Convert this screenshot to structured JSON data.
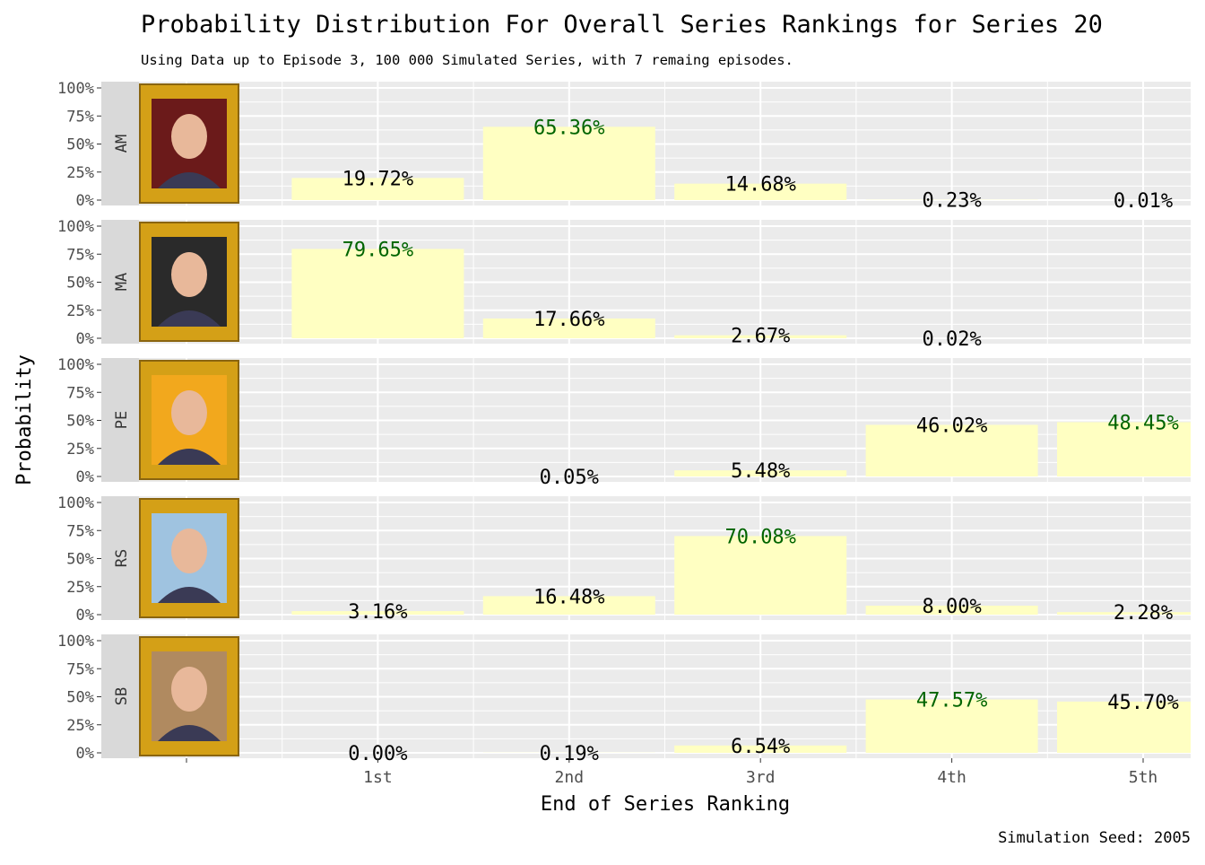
{
  "chart_data": {
    "type": "bar",
    "title": "Probability Distribution For Overall Series Rankings for Series 20",
    "subtitle": "Using Data up to Episode 3, 100 000 Simulated Series, with 7 remaing episodes.",
    "xlabel": "End of Series Ranking",
    "ylabel": "Probability",
    "caption": "Simulation Seed: 2005",
    "categories": [
      "1st",
      "2nd",
      "3rd",
      "4th",
      "5th"
    ],
    "yticks": [
      "0%",
      "25%",
      "50%",
      "75%",
      "100%"
    ],
    "ylim": [
      0,
      100
    ],
    "facets": [
      {
        "name": "AM",
        "values": [
          19.72,
          65.36,
          14.68,
          0.23,
          0.01
        ],
        "labels": [
          "19.72%",
          "65.36%",
          "14.68%",
          "0.23%",
          "0.01%"
        ],
        "max_index": 1
      },
      {
        "name": "MA",
        "values": [
          79.65,
          17.66,
          2.67,
          0.02,
          null
        ],
        "labels": [
          "79.65%",
          "17.66%",
          "2.67%",
          "0.02%",
          null
        ],
        "max_index": 0
      },
      {
        "name": "PE",
        "values": [
          null,
          0.05,
          5.48,
          46.02,
          48.45
        ],
        "labels": [
          null,
          "0.05%",
          "5.48%",
          "46.02%",
          "48.45%"
        ],
        "max_index": 4
      },
      {
        "name": "RS",
        "values": [
          3.16,
          16.48,
          70.08,
          8.0,
          2.28
        ],
        "labels": [
          "3.16%",
          "16.48%",
          "70.08%",
          "8.00%",
          "2.28%"
        ],
        "max_index": 2
      },
      {
        "name": "SB",
        "values": [
          0.0,
          0.19,
          6.54,
          47.57,
          45.7
        ],
        "labels": [
          "0.00%",
          "0.19%",
          "6.54%",
          "47.57%",
          "45.70%"
        ],
        "max_index": 3
      }
    ],
    "colors": {
      "bar": "#FFFFC2",
      "panel": "#EBEBEB",
      "strip": "#D9D9D9",
      "highlight": "#006400",
      "text": "#000000",
      "frame": "#D4A017"
    },
    "portrait_backgrounds": [
      "#6b1a1a",
      "#2a2a2a",
      "#f2a81d",
      "#9fc3e0",
      "#b08a60"
    ]
  }
}
